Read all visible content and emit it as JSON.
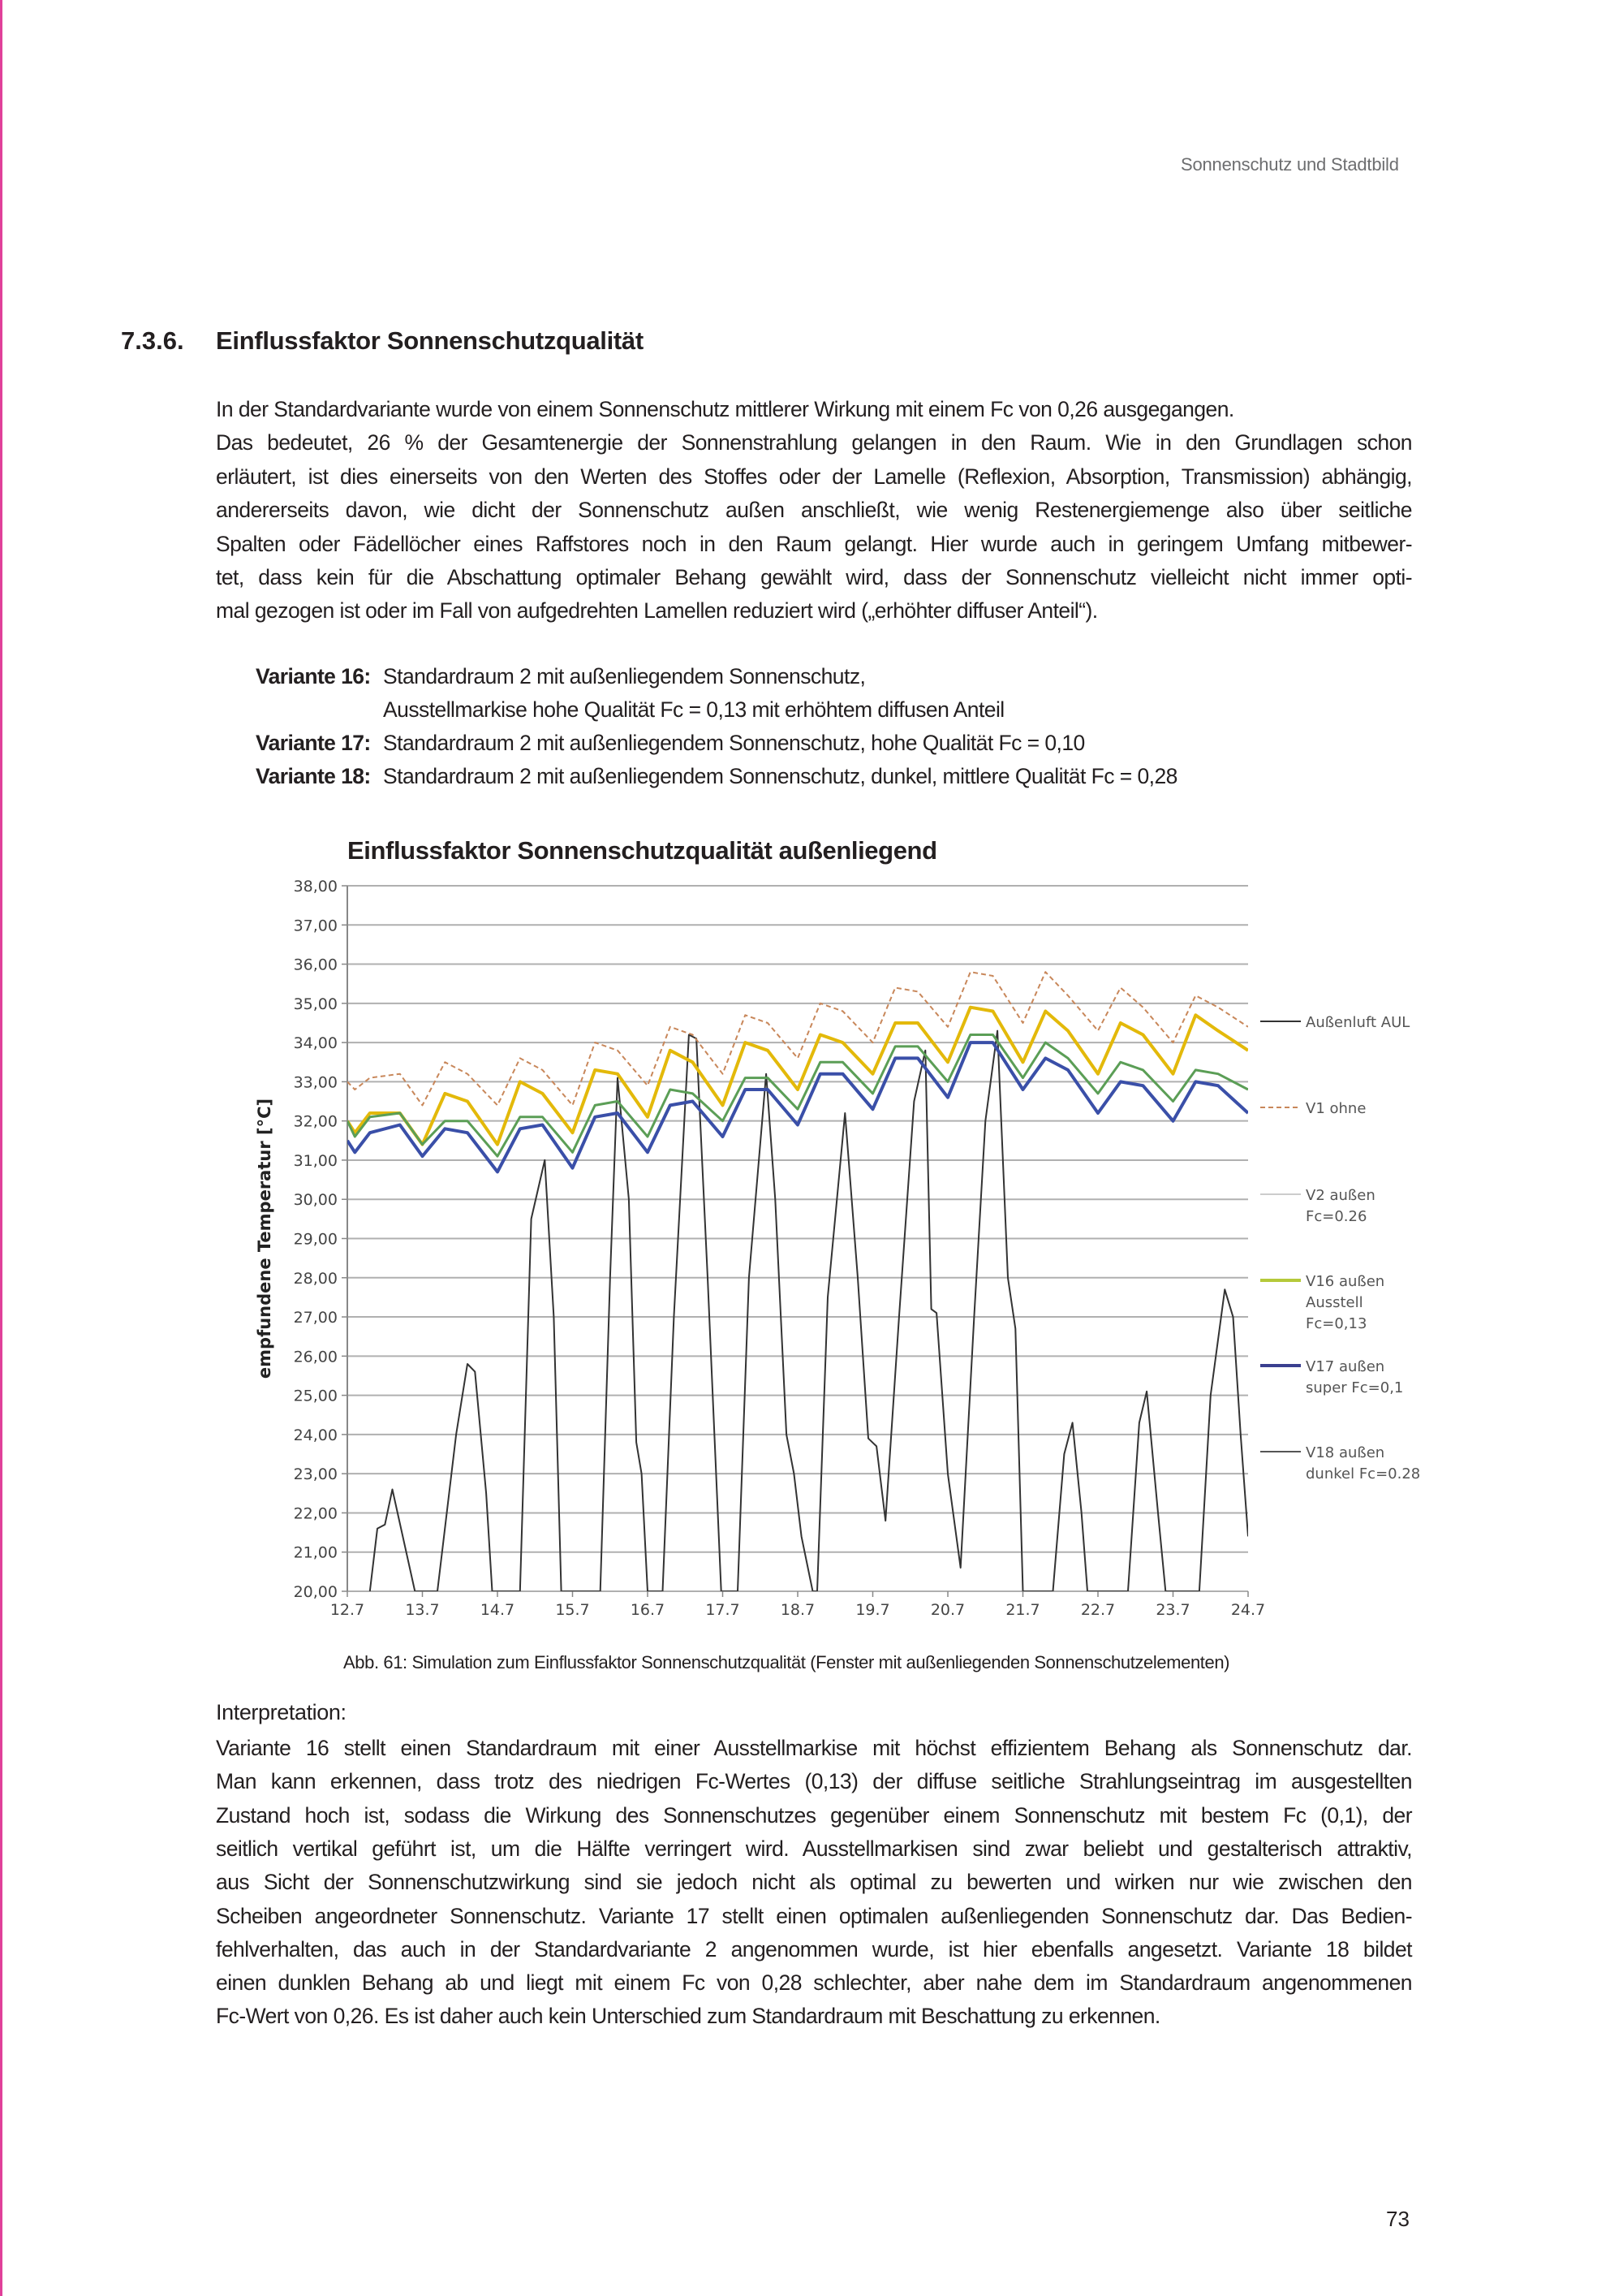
{
  "header": {
    "running_title": "Sonnenschutz und Stadtbild"
  },
  "section": {
    "number": "7.3.6.",
    "title": "Einflussfaktor Sonnenschutzqualität"
  },
  "intro_lines": [
    "In der Standardvariante wurde von einem Sonnenschutz mittlerer Wirkung mit einem Fc von 0,26 ausgegangen.",
    "Das bedeutet, 26 % der Gesamtenergie der Sonnenstrahlung gelangen in den Raum. Wie in den Grundlagen schon",
    "erläutert, ist dies einerseits von den Werten des Stoffes oder der Lamelle (Reflexion, Absorption, Transmission) abhängig,",
    "andererseits davon, wie dicht der Sonnenschutz außen anschließt, wie wenig Restenergiemenge also über seitliche",
    "Spalten oder Fädellöcher eines Raffstores noch in den Raum gelangt. Hier wurde auch in geringem Umfang mitbewer-",
    "tet, dass kein für die Abschattung optimaler Behang gewählt wird, dass der Sonnenschutz vielleicht nicht immer opti-",
    "mal gezogen ist oder im Fall von aufgedrehten Lamellen reduziert wird („erhöhter diffuser Anteil“)."
  ],
  "variants": [
    {
      "label": "Variante 16:",
      "lines": [
        "Standardraum 2 mit außenliegendem Sonnenschutz,",
        "Ausstellmarkise hohe Qualität Fc = 0,13 mit erhöhtem diffusen Anteil"
      ]
    },
    {
      "label": "Variante 17:",
      "lines": [
        "Standardraum 2 mit außenliegendem Sonnenschutz, hohe Qualität Fc = 0,10"
      ]
    },
    {
      "label": "Variante 18:",
      "lines": [
        "Standardraum 2 mit außenliegendem Sonnenschutz, dunkel, mittlere Qualität Fc = 0,28"
      ]
    }
  ],
  "chart_data": {
    "type": "line",
    "title": "Einflussfaktor Sonnenschutzqualität außenliegend",
    "ylabel": "empfundene Temperatur [°C]",
    "xlabel": "",
    "ylim": [
      20,
      38
    ],
    "xlim": [
      0,
      12
    ],
    "grid": true,
    "legend_placement": "right",
    "yticks": [
      "20,00",
      "21,00",
      "22,00",
      "23,00",
      "24,00",
      "25,00",
      "26,00",
      "27,00",
      "28,00",
      "29,00",
      "30,00",
      "31,00",
      "32,00",
      "33,00",
      "34,00",
      "35,00",
      "36,00",
      "37,00",
      "38,00"
    ],
    "xticks": [
      "12.7",
      "13.7",
      "14.7",
      "15.7",
      "16.7",
      "17.7",
      "18.7",
      "19.7",
      "20.7",
      "21.7",
      "22.7",
      "23.7",
      "24.7"
    ],
    "x": [
      0,
      0.1,
      0.3,
      0.7,
      1.0,
      1.3,
      1.6,
      2.0,
      2.3,
      2.6,
      3.0,
      3.3,
      3.6,
      4.0,
      4.3,
      4.6,
      5.0,
      5.3,
      5.6,
      6.0,
      6.3,
      6.6,
      7.0,
      7.3,
      7.6,
      8.0,
      8.3,
      8.6,
      9.0,
      9.3,
      9.6,
      10.0,
      10.3,
      10.6,
      11.0,
      11.3,
      11.6,
      12.0
    ],
    "series": [
      {
        "name": "Außenluft AUL",
        "color": "#333333",
        "style": "solid",
        "points": [
          [
            0.3,
            20
          ],
          [
            0.4,
            21.6
          ],
          [
            0.5,
            21.7
          ],
          [
            0.6,
            22.6
          ],
          [
            0.9,
            20
          ],
          [
            1.2,
            20
          ],
          [
            1.45,
            24
          ],
          [
            1.6,
            25.8
          ],
          [
            1.7,
            25.6
          ],
          [
            1.85,
            22.5
          ],
          [
            1.93,
            20
          ],
          [
            2.3,
            20
          ],
          [
            2.45,
            29.5
          ],
          [
            2.63,
            31
          ],
          [
            2.75,
            27
          ],
          [
            2.85,
            20
          ],
          [
            3.37,
            20
          ],
          [
            3.5,
            28
          ],
          [
            3.6,
            33.1
          ],
          [
            3.75,
            30
          ],
          [
            3.85,
            23.8
          ],
          [
            3.92,
            23
          ],
          [
            4.0,
            20
          ],
          [
            4.2,
            20
          ],
          [
            4.35,
            27
          ],
          [
            4.55,
            34.2
          ],
          [
            4.65,
            34.1
          ],
          [
            4.8,
            28
          ],
          [
            4.98,
            20
          ],
          [
            5.2,
            20
          ],
          [
            5.35,
            28
          ],
          [
            5.58,
            33.2
          ],
          [
            5.7,
            30
          ],
          [
            5.85,
            24
          ],
          [
            5.95,
            23
          ],
          [
            6.05,
            21.4
          ],
          [
            6.2,
            20
          ],
          [
            6.26,
            20
          ],
          [
            6.4,
            27.5
          ],
          [
            6.63,
            32.2
          ],
          [
            6.8,
            28
          ],
          [
            6.94,
            23.9
          ],
          [
            7.05,
            23.7
          ],
          [
            7.17,
            21.8
          ],
          [
            7.35,
            27
          ],
          [
            7.55,
            32.5
          ],
          [
            7.7,
            33.8
          ],
          [
            7.78,
            27.2
          ],
          [
            7.85,
            27.1
          ],
          [
            8.0,
            23
          ],
          [
            8.17,
            20.6
          ],
          [
            8.35,
            27
          ],
          [
            8.5,
            32
          ],
          [
            8.66,
            34.3
          ],
          [
            8.8,
            28
          ],
          [
            8.9,
            26.7
          ],
          [
            9.0,
            20
          ],
          [
            9.4,
            20
          ],
          [
            9.55,
            23.5
          ],
          [
            9.66,
            24.3
          ],
          [
            9.78,
            22
          ],
          [
            9.86,
            20
          ],
          [
            10.4,
            20
          ],
          [
            10.55,
            24.3
          ],
          [
            10.65,
            25.1
          ],
          [
            10.8,
            22
          ],
          [
            10.9,
            20
          ],
          [
            11.35,
            20
          ],
          [
            11.5,
            25
          ],
          [
            11.69,
            27.7
          ],
          [
            11.8,
            27
          ],
          [
            11.9,
            24
          ],
          [
            12.0,
            21.4
          ]
        ]
      },
      {
        "name": "V1 ohne",
        "color": "#c8875a",
        "style": "dashed",
        "values": [
          33.0,
          32.8,
          33.1,
          33.2,
          32.4,
          33.5,
          33.2,
          32.4,
          33.6,
          33.3,
          32.4,
          34.0,
          33.8,
          32.9,
          34.4,
          34.2,
          33.2,
          34.7,
          34.5,
          33.6,
          35.0,
          34.8,
          34.0,
          35.4,
          35.3,
          34.4,
          35.8,
          35.7,
          34.5,
          35.8,
          35.2,
          34.3,
          35.4,
          34.9,
          34.0,
          35.2,
          34.9,
          34.4
        ]
      },
      {
        "name": "V2 außen Fc=0.26",
        "color": "#5b9e56",
        "style": "solid",
        "values": [
          32.0,
          31.6,
          32.1,
          32.2,
          31.4,
          32.0,
          32.0,
          31.1,
          32.1,
          32.1,
          31.2,
          32.4,
          32.5,
          31.6,
          32.8,
          32.7,
          32.0,
          33.1,
          33.1,
          32.3,
          33.5,
          33.5,
          32.7,
          33.9,
          33.9,
          33.0,
          34.2,
          34.2,
          33.1,
          34.0,
          33.6,
          32.7,
          33.5,
          33.3,
          32.5,
          33.3,
          33.2,
          32.8
        ]
      },
      {
        "name": "V16 außen Ausstell Fc=0,13",
        "color": "#e3b90a",
        "style": "solid",
        "values": [
          32.0,
          31.7,
          32.2,
          32.2,
          31.4,
          32.7,
          32.5,
          31.4,
          33.0,
          32.7,
          31.7,
          33.3,
          33.2,
          32.1,
          33.8,
          33.5,
          32.4,
          34.0,
          33.8,
          32.8,
          34.2,
          34.0,
          33.2,
          34.5,
          34.5,
          33.5,
          34.9,
          34.8,
          33.5,
          34.8,
          34.3,
          33.2,
          34.5,
          34.2,
          33.2,
          34.7,
          34.3,
          33.8
        ]
      },
      {
        "name": "V17 außen super Fc=0,1",
        "color": "#3a4fa8",
        "style": "solid",
        "values": [
          31.5,
          31.2,
          31.7,
          31.9,
          31.1,
          31.8,
          31.7,
          30.7,
          31.8,
          31.9,
          30.8,
          32.1,
          32.2,
          31.2,
          32.4,
          32.5,
          31.6,
          32.8,
          32.8,
          31.9,
          33.2,
          33.2,
          32.3,
          33.6,
          33.6,
          32.6,
          34.0,
          34.0,
          32.8,
          33.6,
          33.3,
          32.2,
          33.0,
          32.9,
          32.0,
          33.0,
          32.9,
          32.2
        ]
      },
      {
        "name": "V18 außen dunkel Fc=0.28",
        "color": "#555555",
        "style": "solid"
      }
    ],
    "legend": [
      {
        "lines": [
          "Außenluft AUL"
        ],
        "color": "#333333",
        "style": "solid"
      },
      {
        "lines": [
          "V1 ohne"
        ],
        "color": "#c8875a",
        "style": "dashed"
      },
      {
        "lines": [
          "V2 außen",
          "Fc=0.26"
        ],
        "color": "#cccccc",
        "style": "solid"
      },
      {
        "lines": [
          "V16 außen",
          "Ausstell",
          "Fc=0,13"
        ],
        "color": "#b5c93a",
        "style": "solid"
      },
      {
        "lines": [
          "V17 außen",
          "super Fc=0,1"
        ],
        "color": "#3a3f8f",
        "style": "solid"
      },
      {
        "lines": [
          "V18 außen",
          "dunkel Fc=0.28"
        ],
        "color": "#555555",
        "style": "solid"
      }
    ]
  },
  "caption": "Abb. 61: Simulation zum Einflussfaktor Sonnenschutzqualität (Fenster mit außenliegenden Sonnenschutzelementen)",
  "interpretation": {
    "heading": "Interpretation:",
    "lines": [
      "Variante 16 stellt einen Standardraum mit einer Ausstellmarkise mit höchst effizientem Behang als Sonnenschutz dar.",
      "Man kann erkennen, dass trotz des niedrigen Fc-Wertes (0,13) der diffuse seitliche Strahlungseintrag im ausgestellten",
      "Zustand hoch ist, sodass die Wirkung des Sonnenschutzes gegenüber einem Sonnenschutz mit bestem Fc (0,1), der",
      "seitlich vertikal geführt ist, um die Hälfte verringert wird. Ausstellmarkisen sind zwar beliebt und gestalterisch attraktiv,",
      "aus Sicht der Sonnenschutzwirkung sind sie jedoch nicht als optimal zu bewerten und wirken nur wie zwischen den",
      "Scheiben angeordneter Sonnenschutz. Variante 17 stellt einen optimalen außenliegenden Sonnenschutz dar. Das Bedien-",
      "fehlverhalten, das auch in der Standardvariante 2 angenommen wurde, ist hier ebenfalls angesetzt. Variante 18 bildet",
      "einen dunklen Behang ab und liegt mit einem Fc von 0,28 schlechter, aber nahe dem im Standardraum angenommenen",
      "Fc-Wert von 0,26. Es ist daher auch kein Unterschied zum Standardraum mit Beschattung zu erkennen."
    ]
  },
  "page_number": "73"
}
